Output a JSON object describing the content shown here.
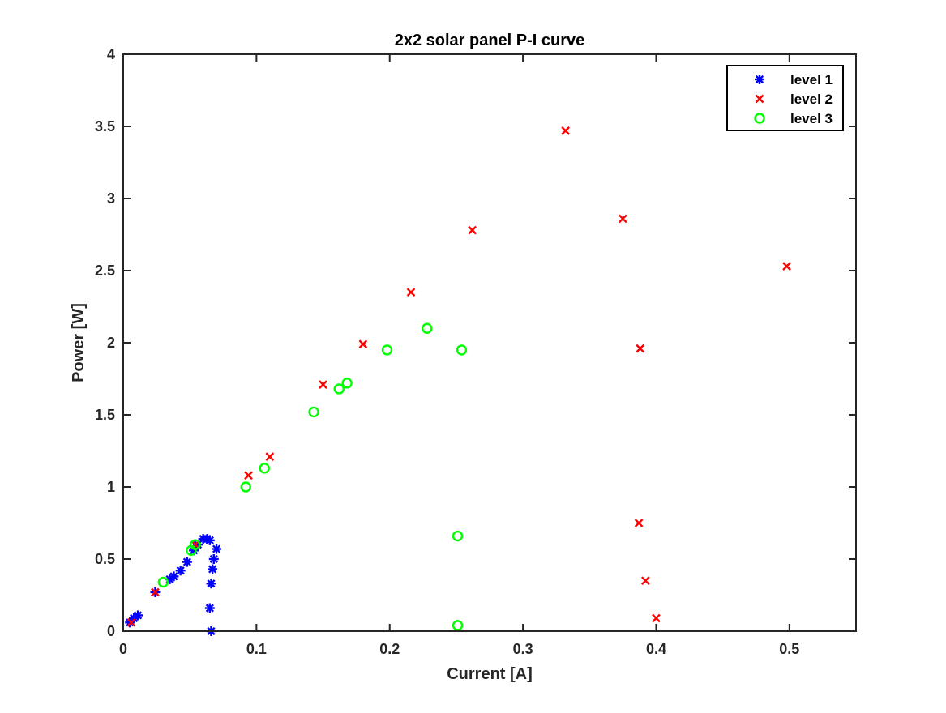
{
  "chart_data": {
    "type": "scatter",
    "title": "2x2 solar panel P-I curve",
    "xlabel": "Current [A]",
    "ylabel": "Power [W]",
    "xlim": [
      0,
      0.55
    ],
    "ylim": [
      0,
      4
    ],
    "xticks": [
      0,
      0.1,
      0.2,
      0.3,
      0.4,
      0.5
    ],
    "yticks": [
      0,
      0.5,
      1,
      1.5,
      2,
      2.5,
      3,
      3.5,
      4
    ],
    "xtick_labels": [
      "0",
      "0.1",
      "0.2",
      "0.3",
      "0.4",
      "0.5"
    ],
    "ytick_labels": [
      "0",
      "0.5",
      "1",
      "1.5",
      "2",
      "2.5",
      "3",
      "3.5",
      "4"
    ],
    "grid": false,
    "legend_position": "top-right",
    "series": [
      {
        "name": "level 1",
        "marker": "asterisk",
        "color": "#0000ff",
        "points": [
          [
            0.005,
            0.06
          ],
          [
            0.008,
            0.09
          ],
          [
            0.011,
            0.11
          ],
          [
            0.024,
            0.27
          ],
          [
            0.035,
            0.36
          ],
          [
            0.038,
            0.38
          ],
          [
            0.043,
            0.42
          ],
          [
            0.048,
            0.48
          ],
          [
            0.053,
            0.56
          ],
          [
            0.056,
            0.6
          ],
          [
            0.06,
            0.64
          ],
          [
            0.063,
            0.64
          ],
          [
            0.065,
            0.63
          ],
          [
            0.066,
            0.33
          ],
          [
            0.065,
            0.16
          ],
          [
            0.066,
            0.0
          ],
          [
            0.067,
            0.43
          ],
          [
            0.068,
            0.5
          ],
          [
            0.07,
            0.57
          ]
        ]
      },
      {
        "name": "level 2",
        "marker": "x",
        "color": "#ff0000",
        "points": [
          [
            0.006,
            0.06
          ],
          [
            0.024,
            0.27
          ],
          [
            0.054,
            0.6
          ],
          [
            0.094,
            1.08
          ],
          [
            0.11,
            1.21
          ],
          [
            0.15,
            1.71
          ],
          [
            0.18,
            1.99
          ],
          [
            0.216,
            2.35
          ],
          [
            0.262,
            2.78
          ],
          [
            0.332,
            3.47
          ],
          [
            0.375,
            2.86
          ],
          [
            0.498,
            2.53
          ],
          [
            0.388,
            1.96
          ],
          [
            0.387,
            0.75
          ],
          [
            0.392,
            0.35
          ],
          [
            0.4,
            0.09
          ]
        ]
      },
      {
        "name": "level 3",
        "marker": "circle",
        "color": "#00ff00",
        "points": [
          [
            0.03,
            0.34
          ],
          [
            0.051,
            0.56
          ],
          [
            0.054,
            0.6
          ],
          [
            0.092,
            1.0
          ],
          [
            0.106,
            1.13
          ],
          [
            0.143,
            1.52
          ],
          [
            0.162,
            1.68
          ],
          [
            0.168,
            1.72
          ],
          [
            0.198,
            1.95
          ],
          [
            0.228,
            2.1
          ],
          [
            0.254,
            1.95
          ],
          [
            0.251,
            0.66
          ],
          [
            0.251,
            0.04
          ]
        ]
      }
    ]
  }
}
